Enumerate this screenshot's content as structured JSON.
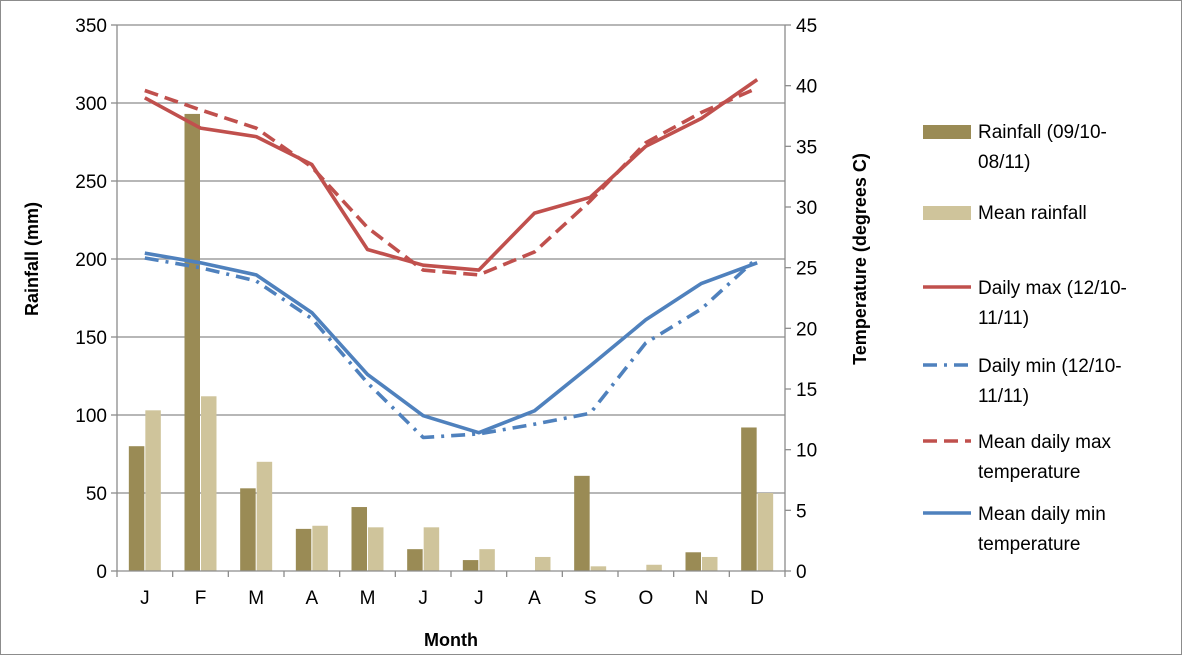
{
  "chart_data": {
    "type": "bar",
    "categories": [
      "J",
      "F",
      "M",
      "A",
      "M",
      "J",
      "J",
      "A",
      "S",
      "O",
      "N",
      "D"
    ],
    "xlabel": "Month",
    "ylabel": "Rainfall (mm)",
    "y2label": "Temperature (degrees C)",
    "ylim": [
      0,
      350
    ],
    "y2lim": [
      0,
      45
    ],
    "yticks": [
      0,
      50,
      100,
      150,
      200,
      250,
      300,
      350
    ],
    "y2ticks": [
      0,
      5,
      10,
      15,
      20,
      25,
      30,
      35,
      40,
      45
    ],
    "grid": true,
    "legend_position": "right",
    "bar_series": [
      {
        "name": "Rainfall (09/10-08/11)",
        "color": "#9a8b55",
        "values": [
          80,
          293,
          53,
          27,
          41,
          14,
          7,
          0,
          61,
          0,
          12,
          92
        ]
      },
      {
        "name": "Mean rainfall",
        "color": "#cfc49b",
        "values": [
          103,
          112,
          70,
          29,
          28,
          28,
          14,
          9,
          3,
          4,
          9,
          50
        ]
      }
    ],
    "line_series": [
      {
        "name": "Daily max (12/10-11/11)",
        "color": "#c0504d",
        "dash": "solid",
        "axis": "right",
        "values": [
          39,
          36.5,
          35.8,
          33.5,
          26.5,
          25.2,
          24.8,
          29.5,
          30.8,
          35,
          37.3,
          40.5
        ]
      },
      {
        "name": "Daily min (12/10-11/11)",
        "color": "#4f81bd",
        "dash": "dashdot",
        "axis": "right",
        "values": [
          25.8,
          25,
          23.9,
          20.8,
          15.5,
          11,
          11.3,
          12.1,
          13,
          18.8,
          21.6,
          25.8
        ]
      },
      {
        "name": "Mean daily max temperature",
        "color": "#c0504d",
        "dash": "dashed",
        "axis": "right",
        "values": [
          39.6,
          38,
          36.5,
          33.3,
          28.3,
          24.8,
          24.4,
          26.3,
          30.5,
          35.3,
          37.8,
          39.8
        ]
      },
      {
        "name": "Mean daily min temperature",
        "color": "#4f81bd",
        "dash": "solid",
        "axis": "right",
        "values": [
          26.2,
          25.4,
          24.4,
          21.3,
          16.2,
          12.8,
          11.4,
          13.2,
          16.9,
          20.7,
          23.7,
          25.4
        ]
      }
    ]
  }
}
